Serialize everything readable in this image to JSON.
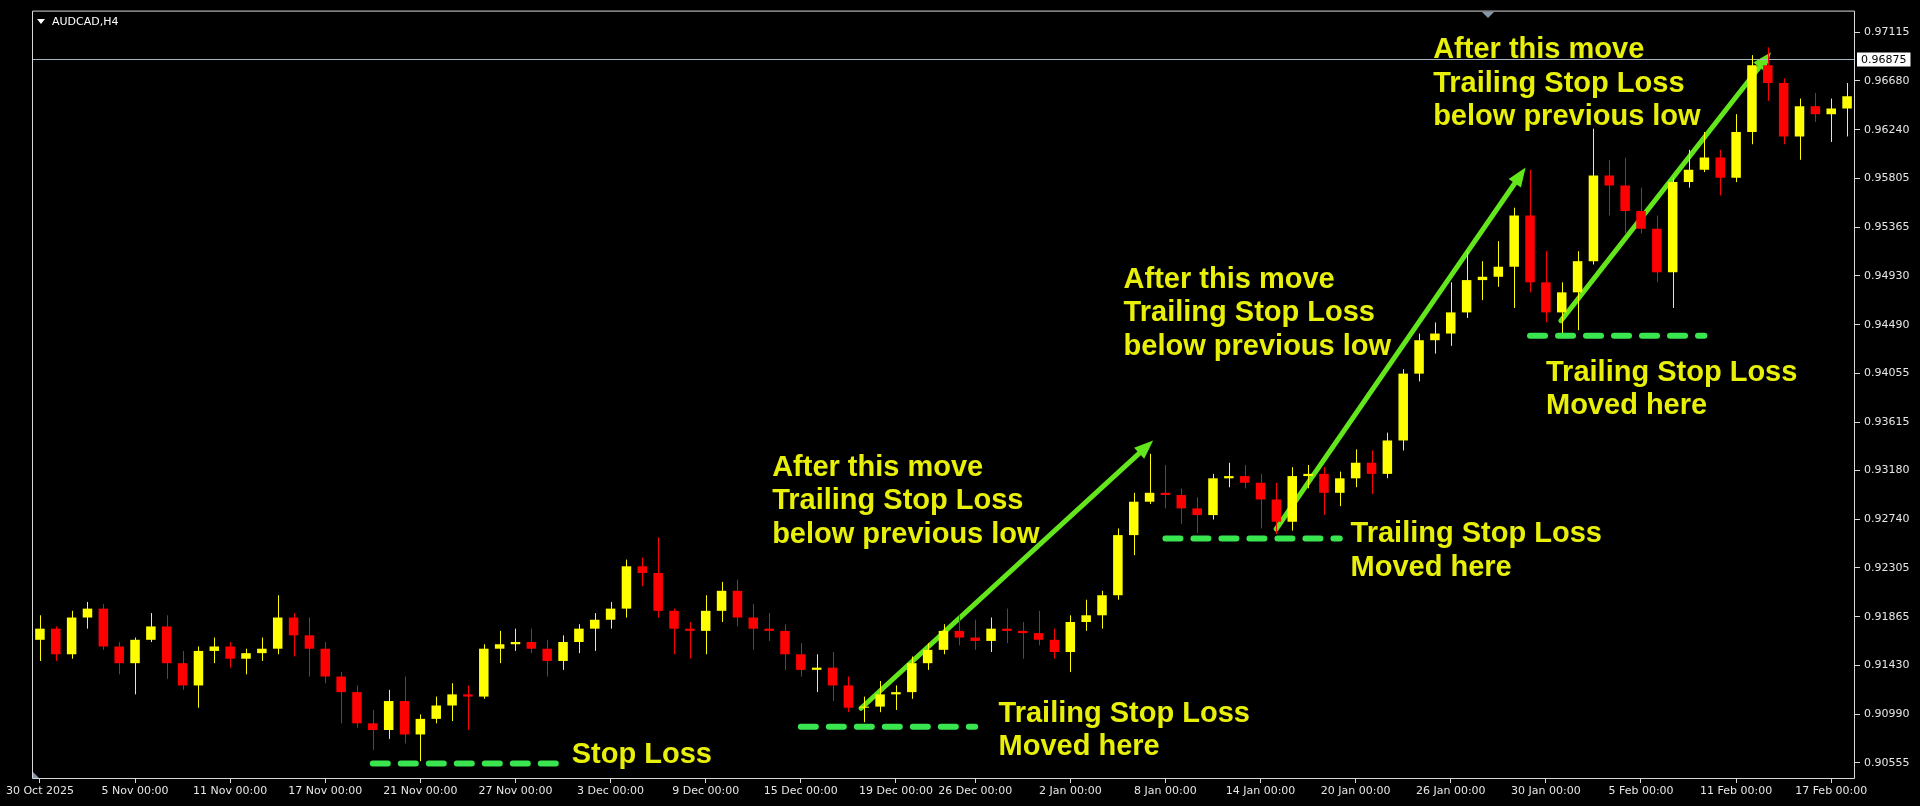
{
  "chart_data": {
    "type": "candlestick",
    "title": "AUDCAD,H4",
    "categories": [
      "30 Oct 2025",
      null,
      null,
      null,
      null,
      null,
      "5 Nov 00:00",
      null,
      null,
      null,
      null,
      null,
      "11 Nov 00:00",
      null,
      null,
      null,
      null,
      null,
      "17 Nov 00:00",
      null,
      null,
      null,
      null,
      null,
      "21 Nov 00:00",
      null,
      null,
      null,
      null,
      null,
      "27 Nov 00:00",
      null,
      null,
      null,
      null,
      null,
      "3 Dec 00:00",
      null,
      null,
      null,
      null,
      null,
      "9 Dec 00:00",
      null,
      null,
      null,
      null,
      null,
      "15 Dec 00:00",
      null,
      null,
      null,
      null,
      null,
      "19 Dec 00:00",
      null,
      null,
      null,
      null,
      "26 Dec 00:00",
      null,
      null,
      null,
      null,
      null,
      "2 Jan 00:00",
      null,
      null,
      null,
      null,
      null,
      "8 Jan 00:00",
      null,
      null,
      null,
      null,
      null,
      "14 Jan 00:00",
      null,
      null,
      null,
      null,
      null,
      "20 Jan 00:00",
      null,
      null,
      null,
      null,
      null,
      "26 Jan 00:00",
      null,
      null,
      null,
      null,
      null,
      "30 Jan 00:00",
      null,
      null,
      null,
      null,
      null,
      "5 Feb 00:00",
      null,
      null,
      null,
      null,
      null,
      "11 Feb 00:00",
      null,
      null,
      null,
      null,
      null,
      "17 Feb 00:00",
      null
    ],
    "series": [
      {
        "type": "candlestick",
        "ohlc": [
          [
            0.9166,
            0.9188,
            0.9147,
            0.9176
          ],
          [
            0.9176,
            0.9178,
            0.9147,
            0.9153
          ],
          [
            0.9153,
            0.9192,
            0.9149,
            0.9186
          ],
          [
            0.9186,
            0.92,
            0.9176,
            0.9194
          ],
          [
            0.9194,
            0.9198,
            0.9157,
            0.916
          ],
          [
            0.916,
            0.9164,
            0.9135,
            0.9145
          ],
          [
            0.9145,
            0.9168,
            0.9117,
            0.9166
          ],
          [
            0.9166,
            0.919,
            0.9164,
            0.9178
          ],
          [
            0.9178,
            0.9188,
            0.9131,
            0.9145
          ],
          [
            0.9145,
            0.9156,
            0.9121,
            0.9125
          ],
          [
            0.9125,
            0.916,
            0.9105,
            0.9156
          ],
          [
            0.9156,
            0.9168,
            0.9145,
            0.916
          ],
          [
            0.916,
            0.9164,
            0.9141,
            0.9149
          ],
          [
            0.9149,
            0.9158,
            0.9135,
            0.9154
          ],
          [
            0.9154,
            0.9168,
            0.9147,
            0.9158
          ],
          [
            0.9158,
            0.9206,
            0.9153,
            0.9186
          ],
          [
            0.9186,
            0.919,
            0.9151,
            0.917
          ],
          [
            0.917,
            0.9186,
            0.9133,
            0.9158
          ],
          [
            0.9158,
            0.9164,
            0.9127,
            0.9133
          ],
          [
            0.9133,
            0.9137,
            0.9091,
            0.9119
          ],
          [
            0.9119,
            0.9125,
            0.9087,
            0.9091
          ],
          [
            0.9091,
            0.9103,
            0.9067,
            0.9085
          ],
          [
            0.9085,
            0.9121,
            0.9077,
            0.9111
          ],
          [
            0.9111,
            0.9133,
            0.9073,
            0.9081
          ],
          [
            0.9081,
            0.9099,
            0.9057,
            0.9095
          ],
          [
            0.9095,
            0.9115,
            0.9091,
            0.9107
          ],
          [
            0.9107,
            0.9127,
            0.9093,
            0.9117
          ],
          [
            0.9117,
            0.9125,
            0.9085,
            0.9115
          ],
          [
            0.9115,
            0.9162,
            0.9113,
            0.9158
          ],
          [
            0.9158,
            0.9174,
            0.9145,
            0.9162
          ],
          [
            0.9162,
            0.9176,
            0.9156,
            0.9164
          ],
          [
            0.9164,
            0.9176,
            0.9154,
            0.9158
          ],
          [
            0.9158,
            0.9166,
            0.9133,
            0.9147
          ],
          [
            0.9147,
            0.917,
            0.9139,
            0.9164
          ],
          [
            0.9164,
            0.918,
            0.9154,
            0.9176
          ],
          [
            0.9176,
            0.919,
            0.9156,
            0.9184
          ],
          [
            0.9184,
            0.92,
            0.9176,
            0.9194
          ],
          [
            0.9194,
            0.9238,
            0.9186,
            0.9232
          ],
          [
            0.9232,
            0.924,
            0.9214,
            0.9226
          ],
          [
            0.9226,
            0.9258,
            0.9186,
            0.9192
          ],
          [
            0.9192,
            0.9194,
            0.9153,
            0.9176
          ],
          [
            0.9176,
            0.9182,
            0.9149,
            0.9174
          ],
          [
            0.9174,
            0.9206,
            0.9153,
            0.9192
          ],
          [
            0.9192,
            0.9218,
            0.9182,
            0.921
          ],
          [
            0.921,
            0.922,
            0.9178,
            0.9186
          ],
          [
            0.9186,
            0.9198,
            0.9157,
            0.9176
          ],
          [
            0.9176,
            0.919,
            0.9165,
            0.9174
          ],
          [
            0.9174,
            0.918,
            0.9139,
            0.9153
          ],
          [
            0.9153,
            0.9163,
            0.9133,
            0.9139
          ],
          [
            0.9139,
            0.9153,
            0.9119,
            0.9141
          ],
          [
            0.9141,
            0.9155,
            0.9111,
            0.9125
          ],
          [
            0.9125,
            0.9133,
            0.9101,
            0.9105
          ],
          [
            0.9105,
            0.9115,
            0.9092,
            0.9106
          ],
          [
            0.9106,
            0.9129,
            0.9101,
            0.9117
          ],
          [
            0.9117,
            0.9125,
            0.9103,
            0.9119
          ],
          [
            0.9119,
            0.9151,
            0.9113,
            0.9145
          ],
          [
            0.9145,
            0.9163,
            0.9139,
            0.9157
          ],
          [
            0.9157,
            0.918,
            0.9153,
            0.9174
          ],
          [
            0.9174,
            0.9188,
            0.9161,
            0.9168
          ],
          [
            0.9168,
            0.9184,
            0.9157,
            0.9165
          ],
          [
            0.9165,
            0.9186,
            0.9155,
            0.9176
          ],
          [
            0.9176,
            0.9194,
            0.9163,
            0.9174
          ],
          [
            0.9174,
            0.9182,
            0.9149,
            0.9172
          ],
          [
            0.9172,
            0.9192,
            0.9161,
            0.9166
          ],
          [
            0.9166,
            0.9176,
            0.9149,
            0.9155
          ],
          [
            0.9155,
            0.9188,
            0.9137,
            0.9182
          ],
          [
            0.9182,
            0.9202,
            0.9174,
            0.9188
          ],
          [
            0.9188,
            0.921,
            0.9176,
            0.9206
          ],
          [
            0.9206,
            0.9266,
            0.9202,
            0.926
          ],
          [
            0.926,
            0.9298,
            0.9242,
            0.929
          ],
          [
            0.929,
            0.9333,
            0.9288,
            0.9298
          ],
          [
            0.9298,
            0.9323,
            0.9284,
            0.9296
          ],
          [
            0.9296,
            0.9302,
            0.927,
            0.9284
          ],
          [
            0.9284,
            0.9294,
            0.9262,
            0.9278
          ],
          [
            0.9278,
            0.9315,
            0.9274,
            0.9311
          ],
          [
            0.9311,
            0.9325,
            0.9303,
            0.9313
          ],
          [
            0.9313,
            0.9323,
            0.9302,
            0.9307
          ],
          [
            0.9307,
            0.9315,
            0.9266,
            0.9292
          ],
          [
            0.9292,
            0.9307,
            0.9261,
            0.9272
          ],
          [
            0.9272,
            0.9321,
            0.9264,
            0.9313
          ],
          [
            0.9313,
            0.9323,
            0.9302,
            0.9315
          ],
          [
            0.9315,
            0.9321,
            0.9278,
            0.9298
          ],
          [
            0.9298,
            0.9317,
            0.9286,
            0.9311
          ],
          [
            0.9311,
            0.9337,
            0.9303,
            0.9325
          ],
          [
            0.9325,
            0.9336,
            0.9297,
            0.9315
          ],
          [
            0.9315,
            0.9352,
            0.9311,
            0.9345
          ],
          [
            0.9345,
            0.9409,
            0.9336,
            0.9405
          ],
          [
            0.9405,
            0.9441,
            0.9398,
            0.9435
          ],
          [
            0.9435,
            0.9451,
            0.9423,
            0.9441
          ],
          [
            0.9441,
            0.9487,
            0.943,
            0.946
          ],
          [
            0.946,
            0.9515,
            0.9455,
            0.9489
          ],
          [
            0.9489,
            0.9506,
            0.9471,
            0.9492
          ],
          [
            0.9492,
            0.9524,
            0.9483,
            0.9501
          ],
          [
            0.9501,
            0.9554,
            0.9464,
            0.9547
          ],
          [
            0.9547,
            0.9588,
            0.9478,
            0.9487
          ],
          [
            0.9487,
            0.9515,
            0.9451,
            0.946
          ],
          [
            0.946,
            0.9487,
            0.9441,
            0.9478
          ],
          [
            0.9478,
            0.9515,
            0.9444,
            0.9506
          ],
          [
            0.9506,
            0.9625,
            0.9503,
            0.9583
          ],
          [
            0.9583,
            0.9597,
            0.9547,
            0.9574
          ],
          [
            0.9574,
            0.9599,
            0.9531,
            0.9551
          ],
          [
            0.9551,
            0.9572,
            0.9531,
            0.9535
          ],
          [
            0.9535,
            0.9547,
            0.9487,
            0.9496
          ],
          [
            0.9496,
            0.9581,
            0.9464,
            0.9577
          ],
          [
            0.9577,
            0.9606,
            0.9572,
            0.9588
          ],
          [
            0.9588,
            0.9622,
            0.9586,
            0.9599
          ],
          [
            0.9599,
            0.9606,
            0.9565,
            0.9581
          ],
          [
            0.9581,
            0.9638,
            0.9577,
            0.9622
          ],
          [
            0.9622,
            0.9691,
            0.9611,
            0.9682
          ],
          [
            0.9682,
            0.9698,
            0.965,
            0.9666
          ],
          [
            0.9666,
            0.967,
            0.9611,
            0.9618
          ],
          [
            0.9618,
            0.9652,
            0.9597,
            0.9645
          ],
          [
            0.9645,
            0.9657,
            0.9631,
            0.9638
          ],
          [
            0.9638,
            0.9652,
            0.9613,
            0.9643
          ],
          [
            0.9643,
            0.9666,
            0.9618,
            0.9654
          ]
        ],
        "colors": [
          "#ffff00",
          "#ff0000",
          "#ffff00",
          "#ffff00",
          "#ff0000",
          "#ff0000",
          "#ffff00",
          "#ffff00",
          "#ff0000",
          "#ff0000",
          "#ffff00",
          "#ffff00",
          "#ff0000",
          "#ffff00",
          "#ffff00",
          "#ffff00",
          "#ff0000",
          "#ff0000",
          "#ff0000",
          "#ff0000",
          "#ff0000",
          "#ff0000",
          "#ffff00",
          "#ff0000",
          "#ffff00",
          "#ffff00",
          "#ffff00",
          "#ff0000",
          "#ffff00",
          "#ffff00",
          "#ffff00",
          "#ff0000",
          "#ff0000",
          "#ffff00",
          "#ffff00",
          "#ffff00",
          "#ffff00",
          "#ffff00",
          "#ff0000",
          "#ff0000",
          "#ff0000",
          "#ff0000",
          "#ffff00",
          "#ffff00",
          "#ff0000",
          "#ff0000",
          "#ff0000",
          "#ff0000",
          "#ff0000",
          "#ffff00",
          "#ff0000",
          "#ff0000",
          "#ffff00",
          "#ffff00",
          "#ffff00",
          "#ffff00",
          "#ffff00",
          "#ffff00",
          "#ff0000",
          "#ff0000",
          "#ffff00",
          "#ff0000",
          "#ff0000",
          "#ff0000",
          "#ff0000",
          "#ffff00",
          "#ffff00",
          "#ffff00",
          "#ffff00",
          "#ffff00",
          "#ffff00",
          "#ff0000",
          "#ff0000",
          "#ff0000",
          "#ffff00",
          "#ffff00",
          "#ff0000",
          "#ff0000",
          "#ff0000",
          "#ffff00",
          "#ffff00",
          "#ff0000",
          "#ffff00",
          "#ffff00",
          "#ff0000",
          "#ffff00",
          "#ffff00",
          "#ffff00",
          "#ffff00",
          "#ffff00",
          "#ffff00",
          "#ffff00",
          "#ffff00",
          "#ffff00",
          "#ff0000",
          "#ff0000",
          "#ffff00",
          "#ffff00",
          "#ffff00",
          "#ff0000",
          "#ff0000",
          "#ff0000",
          "#ff0000",
          "#ffff00",
          "#ffff00",
          "#ffff00",
          "#ff0000",
          "#ffff00",
          "#ffff00",
          "#ff0000",
          "#ff0000",
          "#ffff00",
          "#ff0000",
          "#ffff00",
          "#ffff00"
        ]
      },
      {
        "type": "line",
        "color": "#39e64f",
        "line_style": "dashed",
        "values": [
          null,
          null,
          null,
          null,
          null,
          null,
          null,
          null,
          null,
          null,
          null,
          null,
          null,
          null,
          null,
          null,
          null,
          null,
          null,
          null,
          null,
          0.9055,
          0.9055,
          0.9055,
          0.9055,
          0.9055,
          0.9055,
          0.9055,
          0.9055,
          0.9055,
          0.9055,
          0.9055,
          0.9055,
          0.9055,
          null,
          null,
          null,
          null,
          null,
          null,
          null,
          null,
          null,
          null,
          null,
          null,
          null,
          null,
          null,
          null,
          null,
          null,
          null,
          null,
          null,
          null,
          null,
          null,
          null,
          null,
          null,
          null,
          null,
          null,
          null,
          null,
          null,
          null,
          null,
          null,
          null,
          null,
          null,
          null,
          null,
          null,
          null,
          null,
          null,
          null,
          null,
          null,
          null,
          null,
          null,
          null,
          null,
          null,
          null,
          null,
          null,
          null,
          null,
          null,
          null,
          null,
          null,
          null,
          null,
          null,
          null,
          null,
          null,
          null,
          null,
          null,
          null,
          null,
          null,
          null,
          null,
          null,
          null,
          null,
          null
        ]
      },
      {
        "type": "line",
        "color": "#39e64f",
        "line_style": "dashed",
        "values": [
          null,
          null,
          null,
          null,
          null,
          null,
          null,
          null,
          null,
          null,
          null,
          null,
          null,
          null,
          null,
          null,
          null,
          null,
          null,
          null,
          null,
          null,
          null,
          null,
          null,
          null,
          null,
          null,
          null,
          null,
          null,
          null,
          null,
          null,
          null,
          null,
          null,
          null,
          null,
          null,
          null,
          null,
          null,
          null,
          null,
          null,
          null,
          null,
          0.9088,
          0.9088,
          0.9088,
          0.9088,
          0.9088,
          0.9088,
          0.9088,
          0.9088,
          0.9088,
          0.9088,
          0.9088,
          0.9088,
          null,
          null,
          null,
          null,
          null,
          null,
          null,
          null,
          null,
          null,
          null,
          null,
          null,
          null,
          null,
          null,
          null,
          null,
          null,
          null,
          null,
          null,
          null,
          null,
          null,
          null,
          null,
          null,
          null,
          null,
          null,
          null,
          null,
          null,
          null,
          null,
          null,
          null,
          null,
          null,
          null,
          null,
          null,
          null,
          null,
          null,
          null,
          null,
          null,
          null,
          null,
          null,
          null,
          null,
          null
        ]
      },
      {
        "type": "line",
        "color": "#39e64f",
        "line_style": "dashed",
        "values": [
          null,
          null,
          null,
          null,
          null,
          null,
          null,
          null,
          null,
          null,
          null,
          null,
          null,
          null,
          null,
          null,
          null,
          null,
          null,
          null,
          null,
          null,
          null,
          null,
          null,
          null,
          null,
          null,
          null,
          null,
          null,
          null,
          null,
          null,
          null,
          null,
          null,
          null,
          null,
          null,
          null,
          null,
          null,
          null,
          null,
          null,
          null,
          null,
          null,
          null,
          null,
          null,
          null,
          null,
          null,
          null,
          null,
          null,
          null,
          null,
          null,
          null,
          null,
          null,
          null,
          null,
          null,
          null,
          null,
          null,
          null,
          0.9257,
          0.9257,
          0.9257,
          0.9257,
          0.9257,
          0.9257,
          0.9257,
          0.9257,
          0.9257,
          0.9257,
          0.9257,
          0.9257,
          null,
          null,
          null,
          null,
          null,
          null,
          null,
          null,
          null,
          null,
          null,
          null,
          null,
          null,
          null,
          null,
          null,
          null,
          null,
          null,
          null,
          null,
          null,
          null,
          null,
          null,
          null,
          null,
          null,
          null,
          null,
          null
        ]
      },
      {
        "type": "line",
        "color": "#39e64f",
        "line_style": "dashed",
        "values": [
          null,
          null,
          null,
          null,
          null,
          null,
          null,
          null,
          null,
          null,
          null,
          null,
          null,
          null,
          null,
          null,
          null,
          null,
          null,
          null,
          null,
          null,
          null,
          null,
          null,
          null,
          null,
          null,
          null,
          null,
          null,
          null,
          null,
          null,
          null,
          null,
          null,
          null,
          null,
          null,
          null,
          null,
          null,
          null,
          null,
          null,
          null,
          null,
          null,
          null,
          null,
          null,
          null,
          null,
          null,
          null,
          null,
          null,
          null,
          null,
          null,
          null,
          null,
          null,
          null,
          null,
          null,
          null,
          null,
          null,
          null,
          null,
          null,
          null,
          null,
          null,
          null,
          null,
          null,
          null,
          null,
          null,
          null,
          null,
          null,
          null,
          null,
          null,
          null,
          null,
          null,
          null,
          null,
          null,
          0.9439,
          0.9439,
          0.9439,
          0.9439,
          0.9439,
          0.9439,
          0.9439,
          0.9439,
          0.9439,
          0.9439,
          0.9439,
          0.9439,
          null,
          null,
          null,
          null,
          null,
          null,
          null,
          null,
          null
        ]
      }
    ],
    "ylim": [
      0.9041,
      0.9731
    ],
    "yticks": [
      0.90555,
      {
        "value": 0.9099,
        "label": "0.90990"
      },
      {
        "value": 0.9143,
        "label": "0.91430"
      },
      0.91865,
      0.92305,
      {
        "value": 0.9274,
        "label": "0.92740"
      },
      {
        "value": 0.9318,
        "label": "0.93180"
      },
      0.93615,
      0.94055,
      {
        "value": 0.9449,
        "label": "0.94490"
      },
      {
        "value": 0.9493,
        "label": "0.94930"
      },
      0.95365,
      0.95805,
      {
        "value": 0.9624,
        "label": "0.96240"
      },
      {
        "value": 0.9668,
        "label": "0.96680"
      },
      0.97115
    ],
    "ref_lines": [
      {
        "axis": "y",
        "value": 0.96875,
        "label": "0.96875",
        "color": "#aab4be"
      }
    ],
    "annotations": [
      "Stop Loss",
      "After this move\nTrailing Stop Loss\nbelow previous low",
      "Trailing Stop Loss\nMoved here",
      "After this move\nTrailing Stop Loss\nbelow previous low",
      "Trailing Stop Loss\nMoved here",
      "After this move\nTrailing Stop Loss\nbelow previous low",
      {
        "text": "Trailing Stop Loss\nMoved here",
        "y": 0.9439
      }
    ],
    "grid": false,
    "legend": false
  }
}
